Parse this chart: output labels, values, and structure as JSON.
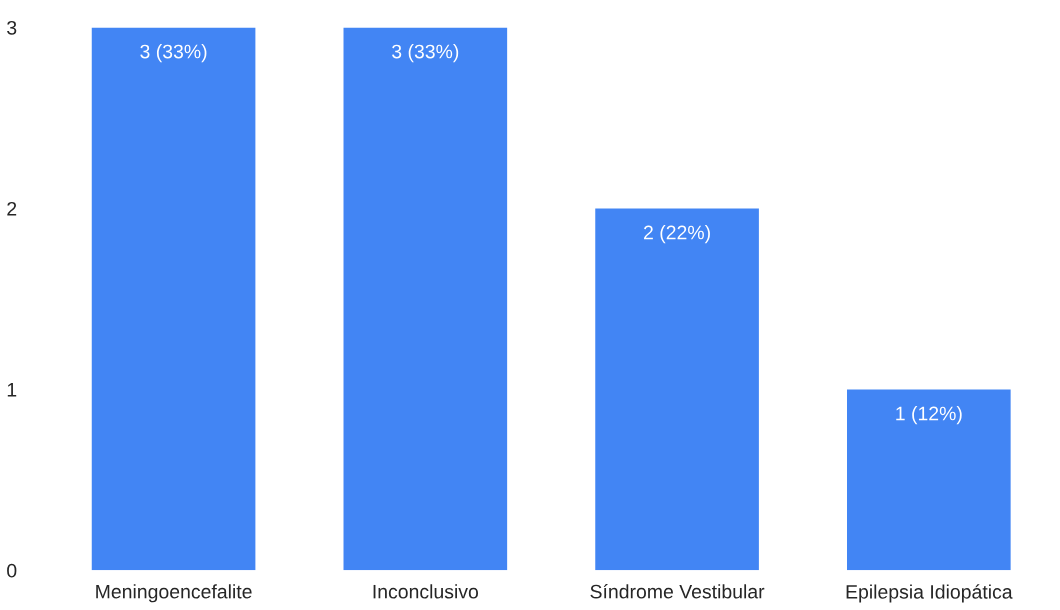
{
  "chart_data": {
    "type": "bar",
    "categories": [
      "Meningoencefalite",
      "Inconclusivo",
      "Síndrome Vestibular",
      "Epilepsia Idiopática"
    ],
    "values": [
      3,
      3,
      2,
      1
    ],
    "value_labels": [
      "3 (33%)",
      "3 (33%)",
      "2 (22%)",
      "1 (12%)"
    ],
    "color": "#4285f4",
    "ylim": [
      0,
      3
    ],
    "yticks": [
      0,
      1,
      2,
      3
    ],
    "grid": false
  }
}
